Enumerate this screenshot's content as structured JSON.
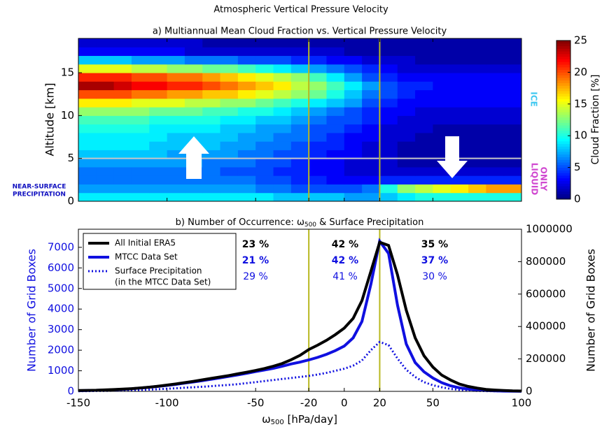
{
  "chart_data": [
    {
      "type": "heatmap",
      "suptitle": "Atmospheric Vertical Pressure Velocity",
      "title": "a) Multiannual Mean Cloud Fraction vs. Vertical Pressure Velocity",
      "ylabel": "Altitude [km]",
      "colorbar_label": "Cloud Fraction [%]",
      "xlim": [
        -150,
        100
      ],
      "ylim": [
        0,
        19
      ],
      "yticks": [
        0,
        5,
        10,
        15
      ],
      "xticks": [
        -150,
        -100,
        -50,
        -20,
        0,
        20,
        50,
        100
      ],
      "clim": [
        0,
        25
      ],
      "cticks": [
        0,
        5,
        10,
        15,
        20,
        25
      ],
      "colormap": "jet",
      "vlines": [
        -20,
        20
      ],
      "vline_color": "#b8b820",
      "hline": 5,
      "hline_color": "#c8c8c8",
      "annotations": {
        "ice": "ICE",
        "liquid": [
          "ONLY",
          "LIQUID"
        ],
        "precip": [
          "NEAR-SURFACE",
          "PRECIPITATION"
        ]
      },
      "x": [
        -145,
        -135,
        -125,
        -115,
        -105,
        -95,
        -85,
        -75,
        -65,
        -55,
        -45,
        -35,
        -25,
        -15,
        -5,
        5,
        15,
        25,
        35,
        45,
        55,
        65,
        75,
        85,
        95
      ],
      "y": [
        0.5,
        1.5,
        2.5,
        3.5,
        4.5,
        5.5,
        6.5,
        7.5,
        8.5,
        9.5,
        10.5,
        11.5,
        12.5,
        13.5,
        14.5,
        15.5,
        16.5,
        17.5,
        18.5
      ],
      "z": [
        [
          9,
          9,
          9,
          9,
          9,
          9,
          9,
          9,
          9,
          9,
          9,
          8,
          8,
          8,
          8,
          7,
          7,
          8,
          9,
          10,
          10,
          10,
          10,
          10,
          10
        ],
        [
          7,
          7,
          7,
          7,
          7,
          7,
          7,
          7,
          7,
          7,
          6,
          6,
          5,
          5,
          5,
          5,
          6,
          10,
          13,
          14,
          15,
          16,
          17,
          18,
          18
        ],
        [
          6,
          6,
          6,
          6,
          6,
          6,
          6,
          6,
          6,
          6,
          5,
          5,
          4,
          4,
          3,
          3,
          3,
          4,
          4,
          4,
          4,
          4,
          4,
          4,
          4
        ],
        [
          6,
          6,
          6,
          6,
          6,
          6,
          6,
          6,
          5,
          5,
          5,
          4,
          4,
          3,
          3,
          2,
          2,
          2,
          2,
          2,
          2,
          2,
          2,
          2,
          2
        ],
        [
          7,
          7,
          7,
          7,
          7,
          7,
          7,
          6,
          6,
          6,
          5,
          5,
          4,
          3,
          3,
          2,
          2,
          2,
          1,
          1,
          1,
          1,
          1,
          1,
          1
        ],
        [
          8,
          8,
          8,
          8,
          8,
          7,
          7,
          7,
          7,
          6,
          6,
          5,
          5,
          4,
          3,
          3,
          2,
          2,
          1,
          1,
          1,
          1,
          1,
          1,
          1
        ],
        [
          9,
          9,
          9,
          9,
          8,
          8,
          8,
          8,
          7,
          7,
          6,
          6,
          5,
          4,
          4,
          3,
          2,
          2,
          1,
          1,
          1,
          1,
          1,
          1,
          1
        ],
        [
          9,
          9,
          9,
          9,
          9,
          8,
          8,
          8,
          8,
          7,
          7,
          6,
          6,
          5,
          4,
          3,
          3,
          2,
          2,
          1,
          1,
          1,
          1,
          1,
          1
        ],
        [
          10,
          10,
          10,
          10,
          9,
          9,
          9,
          9,
          8,
          8,
          7,
          7,
          6,
          5,
          5,
          4,
          3,
          2,
          2,
          2,
          1,
          1,
          1,
          1,
          1
        ],
        [
          11,
          11,
          11,
          11,
          10,
          10,
          10,
          10,
          9,
          9,
          8,
          8,
          7,
          6,
          5,
          5,
          4,
          3,
          2,
          2,
          2,
          2,
          2,
          2,
          2
        ],
        [
          13,
          13,
          13,
          13,
          12,
          12,
          12,
          11,
          11,
          10,
          10,
          9,
          8,
          7,
          6,
          5,
          4,
          3,
          3,
          2,
          2,
          2,
          2,
          2,
          2
        ],
        [
          16,
          16,
          16,
          15,
          15,
          15,
          14,
          14,
          13,
          13,
          12,
          11,
          10,
          9,
          8,
          7,
          5,
          4,
          3,
          3,
          3,
          3,
          3,
          3,
          3
        ],
        [
          20,
          20,
          20,
          19,
          19,
          18,
          18,
          17,
          17,
          16,
          15,
          14,
          13,
          12,
          10,
          8,
          6,
          5,
          4,
          3,
          3,
          3,
          3,
          3,
          3
        ],
        [
          24,
          24,
          23,
          22,
          22,
          21,
          21,
          20,
          19,
          18,
          17,
          16,
          14,
          13,
          11,
          9,
          7,
          5,
          4,
          4,
          3,
          3,
          3,
          3,
          3
        ],
        [
          21,
          21,
          21,
          20,
          20,
          19,
          19,
          18,
          17,
          16,
          15,
          14,
          13,
          11,
          9,
          7,
          5,
          4,
          3,
          3,
          3,
          3,
          3,
          3,
          3
        ],
        [
          15,
          15,
          15,
          14,
          14,
          13,
          13,
          12,
          12,
          11,
          10,
          9,
          8,
          7,
          6,
          5,
          4,
          3,
          2,
          2,
          2,
          2,
          2,
          2,
          2
        ],
        [
          8,
          8,
          8,
          7,
          7,
          7,
          6,
          6,
          6,
          5,
          5,
          5,
          4,
          4,
          3,
          3,
          2,
          2,
          2,
          1,
          1,
          1,
          1,
          1,
          1
        ],
        [
          3,
          3,
          3,
          3,
          3,
          3,
          2,
          2,
          2,
          2,
          2,
          2,
          2,
          2,
          2,
          1,
          1,
          1,
          1,
          1,
          1,
          1,
          1,
          1,
          1
        ],
        [
          2,
          2,
          2,
          2,
          2,
          2,
          2,
          1,
          1,
          1,
          1,
          1,
          1,
          1,
          1,
          1,
          1,
          1,
          1,
          1,
          1,
          1,
          1,
          1,
          1
        ]
      ]
    },
    {
      "type": "line",
      "title_parts": [
        "b) Number of Occurrence: ",
        "ω",
        "500",
        " & Surface Precipitation"
      ],
      "xlabel_parts": [
        "ω",
        "500",
        " [hPa/day]"
      ],
      "ylabel": "Number of Grid Boxes",
      "ylabel_color": "#1010e0",
      "y2label": "Number of Grid Boxes",
      "xlim": [
        -150,
        100
      ],
      "ylim": [
        0,
        7880
      ],
      "y2lim": [
        0,
        1000000
      ],
      "xticks": [
        -150,
        -100,
        -50,
        -20,
        0,
        20,
        50,
        100
      ],
      "yticks": [
        0,
        1000,
        2000,
        3000,
        4000,
        5000,
        6000,
        7000
      ],
      "y2ticks": [
        0,
        200000,
        400000,
        600000,
        800000,
        1000000
      ],
      "vlines": [
        -20,
        20
      ],
      "vline_color": "#b8b820",
      "legend_note": "(in the MTCC Data Set)",
      "region_shares": [
        [
          "23 %",
          "42 %",
          "35 %"
        ],
        [
          "21 %",
          "42 %",
          "37 %"
        ],
        [
          "29 %",
          "41 %",
          "30 %"
        ]
      ],
      "x": [
        -150,
        -145,
        -140,
        -135,
        -130,
        -125,
        -120,
        -115,
        -110,
        -105,
        -100,
        -95,
        -90,
        -85,
        -80,
        -75,
        -70,
        -65,
        -60,
        -55,
        -50,
        -45,
        -40,
        -35,
        -30,
        -25,
        -20,
        -15,
        -10,
        -5,
        0,
        5,
        10,
        15,
        20,
        25,
        30,
        35,
        40,
        45,
        50,
        55,
        60,
        65,
        70,
        75,
        80,
        85,
        90,
        95,
        100
      ],
      "series": [
        {
          "name": "All Initial ERA5",
          "color": "#000000",
          "axis": "y2",
          "style": "solid",
          "values": [
            5000,
            6000,
            7000,
            9000,
            11000,
            14000,
            17000,
            21000,
            26000,
            32000,
            39000,
            46000,
            54000,
            62000,
            71000,
            80000,
            89000,
            98000,
            108000,
            118000,
            129000,
            141000,
            155000,
            172000,
            195000,
            222000,
            258000,
            285000,
            315000,
            350000,
            390000,
            450000,
            560000,
            740000,
            920000,
            900000,
            720000,
            500000,
            330000,
            220000,
            150000,
            100000,
            70000,
            45000,
            30000,
            20000,
            12000,
            8000,
            5000,
            3000,
            2000
          ]
        },
        {
          "name": "MTCC Data Set",
          "color": "#1010e0",
          "style": "solid",
          "values": [
            30,
            40,
            50,
            60,
            80,
            100,
            130,
            160,
            200,
            240,
            290,
            340,
            400,
            460,
            520,
            590,
            660,
            730,
            800,
            880,
            960,
            1040,
            1120,
            1220,
            1330,
            1420,
            1530,
            1650,
            1800,
            1980,
            2200,
            2600,
            3400,
            5200,
            7300,
            6700,
            4200,
            2300,
            1400,
            950,
            650,
            420,
            270,
            170,
            110,
            70,
            40,
            25,
            15,
            10,
            5
          ]
        },
        {
          "name": "Surface Precipitation",
          "color": "#1010e0",
          "style": "dotted",
          "values": [
            10,
            15,
            20,
            25,
            35,
            45,
            55,
            70,
            85,
            105,
            130,
            150,
            175,
            200,
            225,
            255,
            285,
            315,
            350,
            400,
            450,
            500,
            550,
            600,
            650,
            700,
            750,
            820,
            900,
            1000,
            1100,
            1250,
            1500,
            2000,
            2400,
            2250,
            1600,
            1050,
            700,
            450,
            300,
            200,
            120,
            70,
            40,
            25,
            15,
            10,
            6,
            4,
            2
          ]
        }
      ]
    }
  ]
}
